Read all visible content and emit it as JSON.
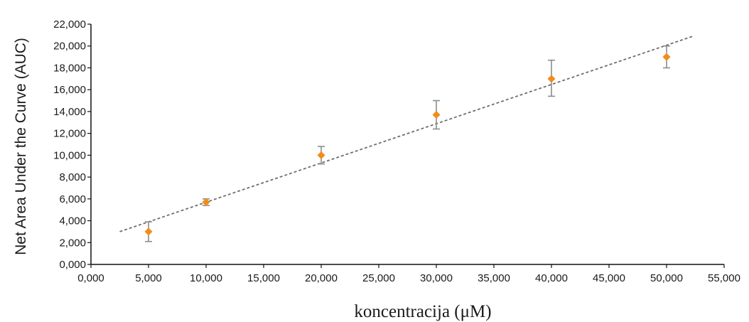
{
  "chart_data": {
    "type": "scatter",
    "xlabel": "koncentracija (μM)",
    "ylabel": "Net Area Under the Curve (AUC)",
    "xlim": [
      0,
      55000
    ],
    "ylim": [
      0,
      22000
    ],
    "x_ticks": [
      "0,000",
      "5,000",
      "10,000",
      "15,000",
      "20,000",
      "25,000",
      "30,000",
      "35,000",
      "40,000",
      "45,000",
      "50,000",
      "55,000"
    ],
    "y_ticks": [
      "0,000",
      "2,000",
      "4,000",
      "6,000",
      "8,000",
      "10,000",
      "12,000",
      "14,000",
      "16,000",
      "18,000",
      "20,000",
      "22,000"
    ],
    "points": [
      {
        "x": 5000,
        "y": 3000,
        "err_low": 2100,
        "err_high": 3900
      },
      {
        "x": 10000,
        "y": 5700,
        "err_low": 5400,
        "err_high": 6000
      },
      {
        "x": 20000,
        "y": 10000,
        "err_low": 9200,
        "err_high": 10800
      },
      {
        "x": 30000,
        "y": 13700,
        "err_low": 12400,
        "err_high": 15000
      },
      {
        "x": 40000,
        "y": 17000,
        "err_low": 15400,
        "err_high": 18700
      },
      {
        "x": 50000,
        "y": 19000,
        "err_low": 18000,
        "err_high": 20000
      }
    ],
    "trendline": {
      "x_start": 2500,
      "y_start": 3000,
      "x_end": 52300,
      "y_end": 20900,
      "style": "dashed"
    },
    "marker_color": "#F28C1B",
    "errorbar_color": "#8C8C8C",
    "trendline_color": "#6F6F6F",
    "grid": false,
    "legend": "none"
  }
}
